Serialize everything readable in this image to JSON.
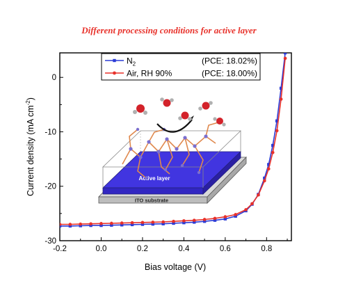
{
  "chart_data": {
    "type": "line",
    "title": "Different processing conditions for active layer",
    "xlabel": "Bias voltage (V)",
    "ylabel": "Current density (mA cm",
    "ylabel_sup": "-2",
    "ylabel_close": ")",
    "xlim": [
      -0.2,
      0.92
    ],
    "ylim": [
      -30,
      4.5
    ],
    "x_ticks": [
      -0.2,
      0.0,
      0.2,
      0.4,
      0.6,
      0.8
    ],
    "x_tick_labels": [
      "-0.2",
      "0.0",
      "0.2",
      "0.4",
      "0.6",
      "0.8"
    ],
    "y_ticks": [
      0,
      -10,
      -20,
      -30
    ],
    "y_tick_labels": [
      "0",
      "-10",
      "-20",
      "-30"
    ],
    "grid": false,
    "legend_position": "top",
    "series": [
      {
        "name": "N",
        "name_sub": "2",
        "pce": "(PCE: 18.02%)",
        "color": "#2b3bd6",
        "marker": "square",
        "x": [
          -0.2,
          -0.15,
          -0.1,
          -0.05,
          0.0,
          0.05,
          0.1,
          0.15,
          0.2,
          0.25,
          0.3,
          0.35,
          0.4,
          0.45,
          0.5,
          0.55,
          0.6,
          0.65,
          0.7,
          0.73,
          0.76,
          0.79,
          0.81,
          0.83,
          0.85,
          0.87,
          0.89
        ],
        "y": [
          -27.3,
          -27.3,
          -27.25,
          -27.2,
          -27.2,
          -27.15,
          -27.1,
          -27.05,
          -27.0,
          -26.95,
          -26.9,
          -26.8,
          -26.7,
          -26.6,
          -26.45,
          -26.25,
          -26.0,
          -25.5,
          -24.5,
          -23.3,
          -21.5,
          -18.5,
          -16.0,
          -12.5,
          -8.0,
          -2.0,
          4.5
        ]
      },
      {
        "name": "Air, RH 90%",
        "pce": "(PCE: 18.00%)",
        "color": "#e8312a",
        "marker": "circle",
        "x": [
          -0.2,
          -0.15,
          -0.1,
          -0.05,
          0.0,
          0.05,
          0.1,
          0.15,
          0.2,
          0.25,
          0.3,
          0.35,
          0.4,
          0.45,
          0.5,
          0.55,
          0.6,
          0.65,
          0.7,
          0.73,
          0.76,
          0.79,
          0.81,
          0.83,
          0.85,
          0.87,
          0.89
        ],
        "y": [
          -27.0,
          -27.0,
          -26.95,
          -26.9,
          -26.85,
          -26.8,
          -26.75,
          -26.7,
          -26.65,
          -26.6,
          -26.55,
          -26.45,
          -26.35,
          -26.25,
          -26.1,
          -25.9,
          -25.6,
          -25.2,
          -24.3,
          -23.2,
          -21.6,
          -19.0,
          -16.8,
          -13.8,
          -9.8,
          -4.0,
          3.5
        ]
      }
    ]
  },
  "inset": {
    "active_layer_label": "Active layer",
    "substrate_label": "ITO substrate",
    "colors": {
      "active_layer": "#3a2fd0",
      "substrate": "#c9c9c9",
      "oxygen": "#d3222a",
      "hydrogen": "#aaaaaa"
    }
  }
}
